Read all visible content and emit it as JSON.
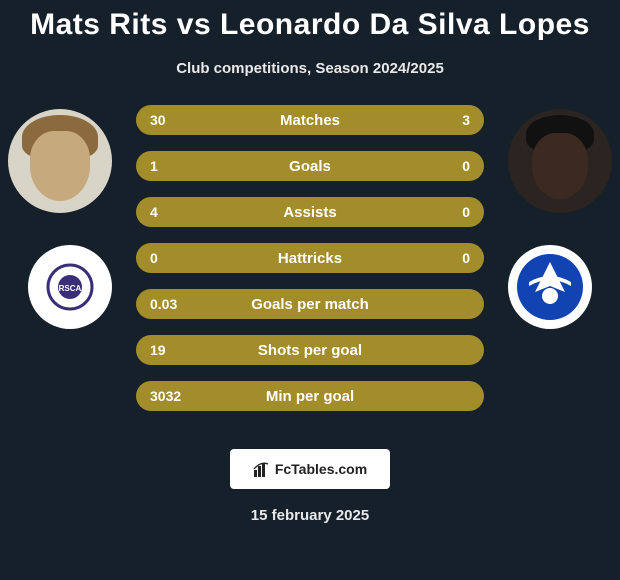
{
  "title": "Mats Rits vs Leonardo Da Silva Lopes",
  "subtitle": "Club competitions, Season 2024/2025",
  "brand": "FcTables.com",
  "date": "15 february 2025",
  "colors": {
    "background": "#16202a",
    "bar": "#a38d2a",
    "text": "#ffffff"
  },
  "rows": [
    {
      "label": "Matches",
      "left": "30",
      "right": "3"
    },
    {
      "label": "Goals",
      "left": "1",
      "right": "0"
    },
    {
      "label": "Assists",
      "left": "4",
      "right": "0"
    },
    {
      "label": "Hattricks",
      "left": "0",
      "right": "0"
    },
    {
      "label": "Goals per match",
      "left": "0.03",
      "right": ""
    },
    {
      "label": "Shots per goal",
      "left": "19",
      "right": ""
    },
    {
      "label": "Min per goal",
      "left": "3032",
      "right": ""
    }
  ],
  "players": {
    "left": {
      "name": "Mats Rits"
    },
    "right": {
      "name": "Leonardo Da Silva Lopes"
    }
  },
  "clubs": {
    "left": {
      "name": "Anderlecht",
      "crest_primary": "#3b2e78"
    },
    "right": {
      "name": "Gent",
      "crest_primary": "#1143b3"
    }
  }
}
